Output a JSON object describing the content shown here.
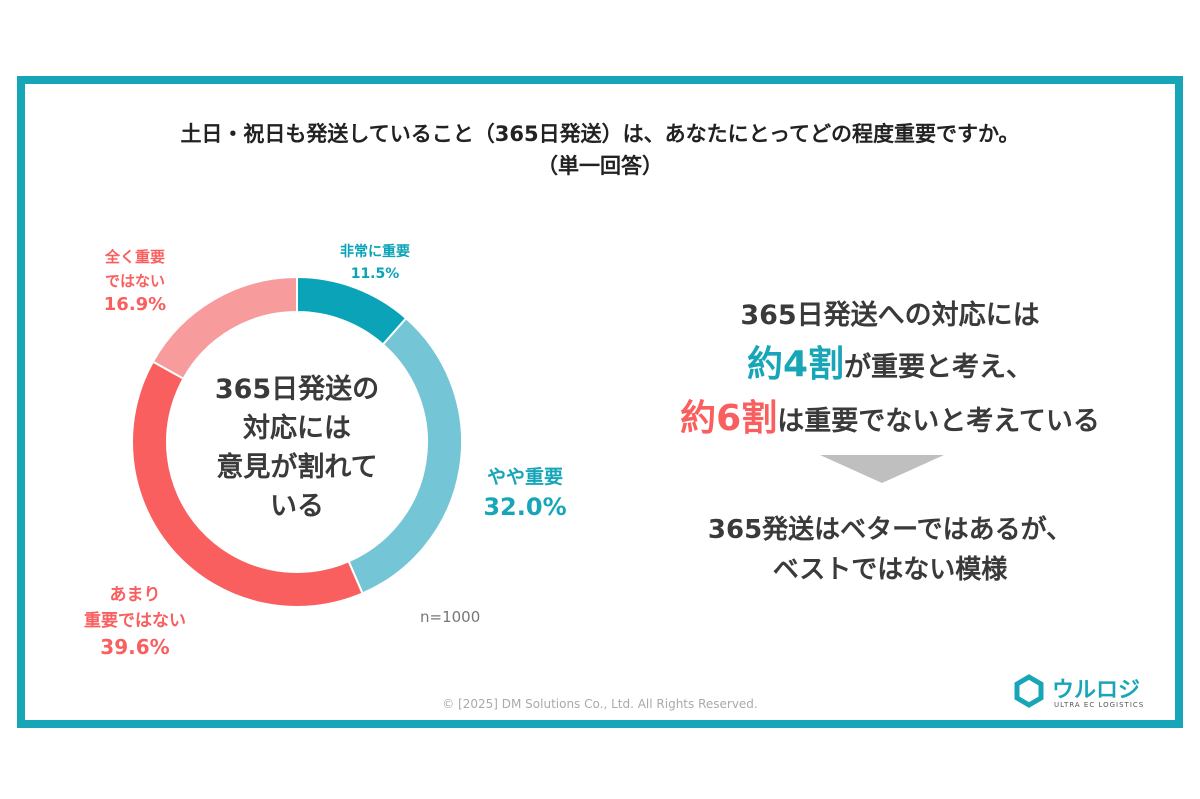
{
  "chart_data": {
    "type": "pie",
    "title": "土日・祝日も発送していること（365日発送）は、あなたにとってどの程度重要ですか。",
    "subtitle": "（単一回答）",
    "categories": [
      "非常に重要",
      "やや重要",
      "あまり重要ではない",
      "全く重要ではない"
    ],
    "values": [
      11.5,
      32.0,
      39.6,
      16.9
    ],
    "value_labels": [
      "11.5%",
      "32.0%",
      "39.6%",
      "16.9%"
    ],
    "colors": [
      "#0aa3b8",
      "#74c5d5",
      "#f95f5f",
      "#f79b9c"
    ],
    "donut": true,
    "center_text": [
      "365日発送の",
      "対応には",
      "意見が割れて",
      "いる"
    ],
    "sample": "n=1000"
  },
  "labels": {
    "very": [
      "非常に重要"
    ],
    "somewhat": [
      "やや重要"
    ],
    "notvery": [
      "あまり",
      "重要ではない"
    ],
    "notatall": [
      "全く重要",
      "ではない"
    ]
  },
  "summary": {
    "line1": "365日発送への対応には",
    "line2a": "約4割",
    "line2b": "が重要と考え、",
    "line3a": "約6割",
    "line3b": "は重要でないと考えている",
    "conclusion1": "365発送はベターではあるが、",
    "conclusion2": "ベストではない模様",
    "accent_teal": "#17a6b8",
    "accent_red": "#f95f5f"
  },
  "footer": {
    "copyright": "© [2025] DM Solutions Co., Ltd. All Rights Reserved.",
    "logo_text": "ウルロジ",
    "logo_sub": "ULTRA EC LOGISTICS"
  }
}
